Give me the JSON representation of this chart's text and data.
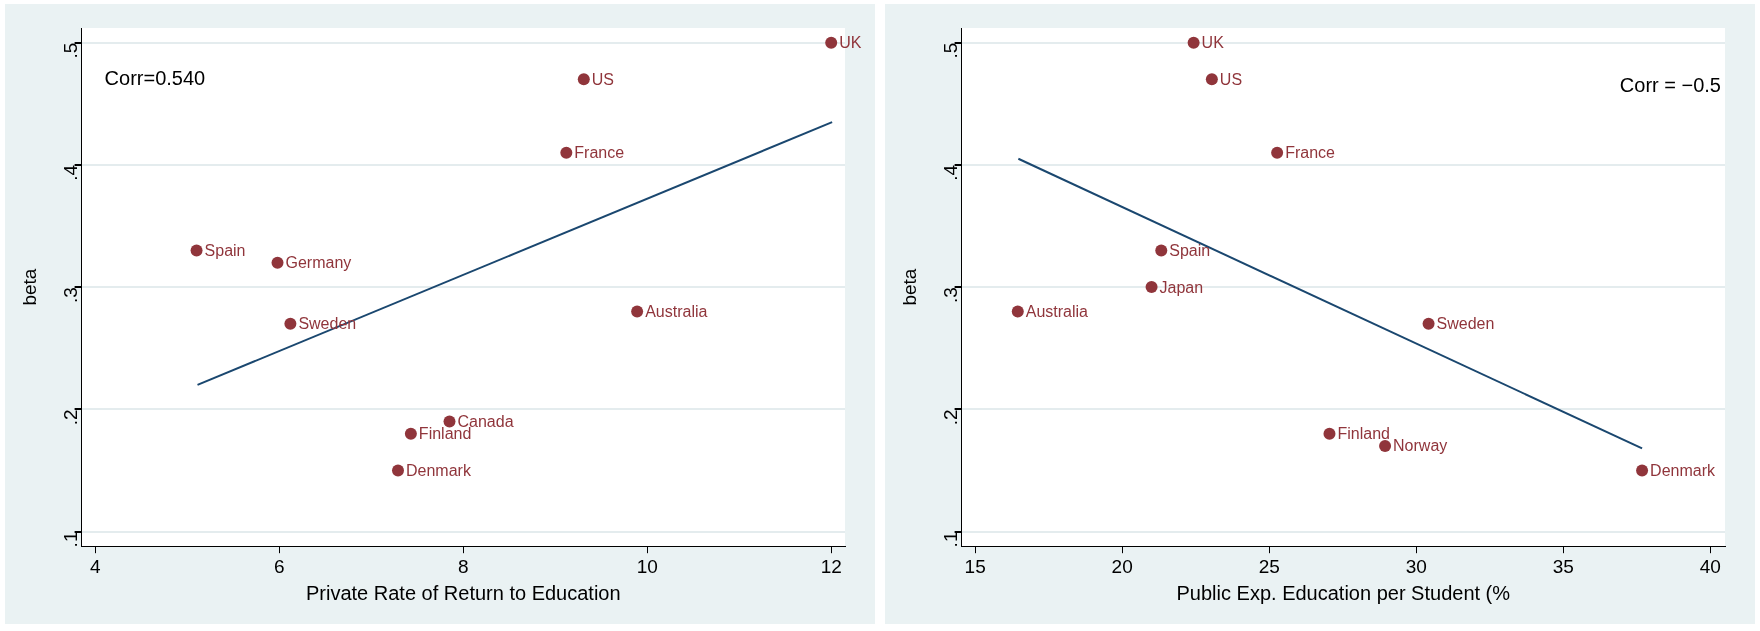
{
  "chart_data": [
    {
      "type": "scatter",
      "xlabel": "Private Rate of Return to Education",
      "ylabel": "beta",
      "xlim": [
        3.85,
        12.15
      ],
      "ylim": [
        0.088,
        0.512
      ],
      "xticks": [
        4,
        6,
        8,
        10,
        12
      ],
      "yticks": [
        {
          "value": 0.1,
          "label": ".1"
        },
        {
          "value": 0.2,
          "label": ".2"
        },
        {
          "value": 0.3,
          "label": ".3"
        },
        {
          "value": 0.4,
          "label": ".4"
        },
        {
          "value": 0.5,
          "label": ".5"
        }
      ],
      "grid": "y",
      "legend": false,
      "series": [
        {
          "type": "scatter",
          "marker": "circle",
          "color": "#90353b",
          "x": [
            12.0,
            9.31,
            9.12,
            5.1,
            5.98,
            6.12,
            9.89,
            7.85,
            7.43,
            7.29
          ],
          "values": [
            0.5,
            0.47,
            0.41,
            0.33,
            0.32,
            0.27,
            0.28,
            0.19,
            0.18,
            0.15
          ]
        },
        {
          "type": "line",
          "marker": "none",
          "color": "#1a476f",
          "x": [
            5.11,
            12.01
          ],
          "values": [
            0.22,
            0.435
          ]
        }
      ],
      "annotations": [
        "Corr=0.540",
        {
          "text": "UK",
          "x": 12.0,
          "y": 0.5
        },
        {
          "text": "US",
          "x": 9.31,
          "y": 0.47
        },
        {
          "text": "France",
          "x": 9.12,
          "y": 0.41
        },
        {
          "text": "Spain",
          "x": 5.1,
          "y": 0.33
        },
        {
          "text": "Germany",
          "x": 5.98,
          "y": 0.32
        },
        {
          "text": "Sweden",
          "x": 6.12,
          "y": 0.27
        },
        {
          "text": "Australia",
          "x": 9.89,
          "y": 0.28
        },
        {
          "text": "Canada",
          "x": 7.85,
          "y": 0.19
        },
        {
          "text": "Finland",
          "x": 7.43,
          "y": 0.18
        },
        {
          "text": "Denmark",
          "x": 7.29,
          "y": 0.15
        }
      ]
    },
    {
      "type": "scatter",
      "xlabel": "Public Exp. Education per Student (%",
      "ylabel": "beta",
      "xlim": [
        14.54,
        40.5
      ],
      "ylim": [
        0.088,
        0.512
      ],
      "xticks": [
        15,
        20,
        25,
        30,
        35,
        40
      ],
      "yticks": [
        {
          "value": 0.1,
          "label": ".1"
        },
        {
          "value": 0.2,
          "label": ".2"
        },
        {
          "value": 0.3,
          "label": ".3"
        },
        {
          "value": 0.4,
          "label": ".4"
        },
        {
          "value": 0.5,
          "label": ".5"
        }
      ],
      "grid": "y",
      "legend": false,
      "series": [
        {
          "type": "scatter",
          "marker": "circle",
          "color": "#90353b",
          "x": [
            22.43,
            23.05,
            25.27,
            21.33,
            21.0,
            16.45,
            30.42,
            27.05,
            28.94,
            37.68
          ],
          "values": [
            0.5,
            0.47,
            0.41,
            0.33,
            0.3,
            0.28,
            0.27,
            0.18,
            0.17,
            0.15
          ]
        },
        {
          "type": "line",
          "marker": "none",
          "color": "#1a476f",
          "x": [
            16.47,
            37.68
          ],
          "values": [
            0.405,
            0.168
          ]
        }
      ],
      "annotations": [
        "Corr = −0.5",
        {
          "text": "UK",
          "x": 22.43,
          "y": 0.5
        },
        {
          "text": "US",
          "x": 23.05,
          "y": 0.47
        },
        {
          "text": "France",
          "x": 25.27,
          "y": 0.41
        },
        {
          "text": "Spain",
          "x": 21.33,
          "y": 0.33
        },
        {
          "text": "Japan",
          "x": 21.0,
          "y": 0.3
        },
        {
          "text": "Australia",
          "x": 16.45,
          "y": 0.28
        },
        {
          "text": "Sweden",
          "x": 30.42,
          "y": 0.27
        },
        {
          "text": "Finland",
          "x": 27.05,
          "y": 0.18
        },
        {
          "text": "Norway",
          "x": 28.94,
          "y": 0.17
        },
        {
          "text": "Denmark",
          "x": 37.68,
          "y": 0.15
        }
      ]
    }
  ]
}
